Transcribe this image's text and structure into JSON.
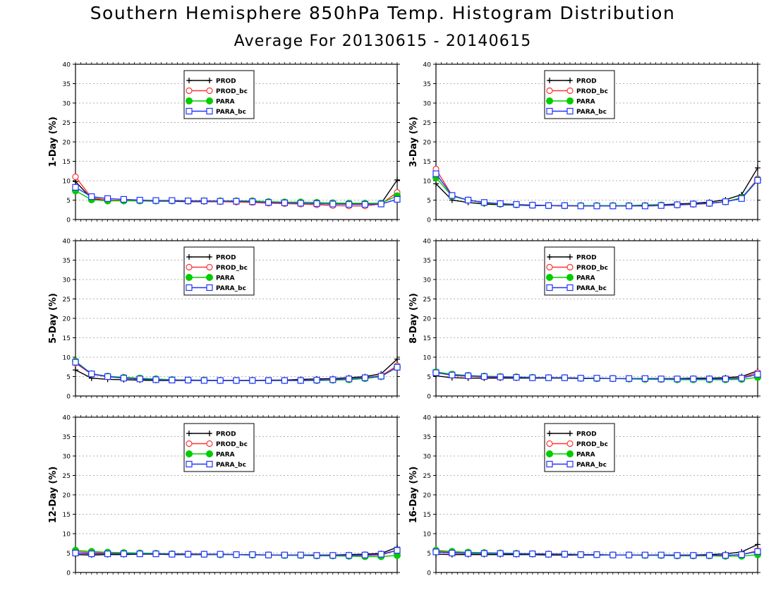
{
  "title": "Southern Hemisphere 850hPa Temp. Histogram Distribution",
  "subtitle": "Average For 20130615 - 20140615",
  "colors": {
    "PROD": "#000000",
    "PROD_bc": "#ff3333",
    "PARA": "#00cc00",
    "PARA_bc": "#2233ff",
    "grid": "#999999"
  },
  "chart_data": [
    {
      "type": "line",
      "ylabel": "1-Day (%)",
      "ylim": [
        0,
        40
      ],
      "yticks": [
        0,
        5,
        10,
        15,
        20,
        25,
        30,
        35,
        40
      ],
      "grid": true,
      "legend": "top-left inside",
      "x": [
        1,
        2,
        3,
        4,
        5,
        6,
        7,
        8,
        9,
        10,
        11,
        12,
        13,
        14,
        15,
        16,
        17,
        18,
        19,
        20,
        21
      ],
      "series": [
        {
          "name": "PROD",
          "marker": "plus",
          "values": [
            9.8,
            5.4,
            5.0,
            4.9,
            4.8,
            4.7,
            4.7,
            4.6,
            4.6,
            4.6,
            4.6,
            4.6,
            4.4,
            4.3,
            4.2,
            4.1,
            4.0,
            4.0,
            4.0,
            4.1,
            10.2
          ]
        },
        {
          "name": "PROD_bc",
          "marker": "open-circle",
          "values": [
            11.0,
            5.6,
            5.0,
            4.9,
            4.8,
            4.8,
            4.8,
            4.7,
            4.7,
            4.6,
            4.5,
            4.4,
            4.2,
            4.1,
            4.0,
            3.8,
            3.6,
            3.5,
            3.5,
            4.0,
            7.0
          ]
        },
        {
          "name": "PARA",
          "marker": "filled-circle",
          "values": [
            7.4,
            5.1,
            4.8,
            4.8,
            4.8,
            4.8,
            4.8,
            4.8,
            4.8,
            4.8,
            4.8,
            4.8,
            4.6,
            4.5,
            4.5,
            4.4,
            4.3,
            4.2,
            4.2,
            4.2,
            6.1
          ]
        },
        {
          "name": "PARA_bc",
          "marker": "open-square",
          "values": [
            8.3,
            5.9,
            5.4,
            5.2,
            5.0,
            4.9,
            4.9,
            4.8,
            4.8,
            4.7,
            4.7,
            4.6,
            4.4,
            4.3,
            4.2,
            4.1,
            4.0,
            3.9,
            3.9,
            4.0,
            5.2
          ]
        }
      ]
    },
    {
      "type": "line",
      "ylabel": "3-Day (%)",
      "ylim": [
        0,
        40
      ],
      "yticks": [
        0,
        5,
        10,
        15,
        20,
        25,
        30,
        35,
        40
      ],
      "grid": true,
      "legend": "top-left inside",
      "x": [
        1,
        2,
        3,
        4,
        5,
        6,
        7,
        8,
        9,
        10,
        11,
        12,
        13,
        14,
        15,
        16,
        17,
        18,
        19,
        20,
        21
      ],
      "series": [
        {
          "name": "PROD",
          "marker": "plus",
          "values": [
            9.2,
            5.0,
            4.4,
            4.0,
            3.8,
            3.7,
            3.6,
            3.6,
            3.5,
            3.5,
            3.6,
            3.6,
            3.6,
            3.7,
            3.8,
            4.0,
            4.2,
            4.5,
            5.1,
            6.4,
            13.3
          ]
        },
        {
          "name": "PROD_bc",
          "marker": "open-circle",
          "values": [
            13.0,
            6.2,
            5.0,
            4.4,
            4.0,
            3.8,
            3.7,
            3.6,
            3.5,
            3.5,
            3.5,
            3.5,
            3.5,
            3.5,
            3.6,
            3.7,
            3.9,
            4.1,
            4.6,
            5.5,
            10.5
          ]
        },
        {
          "name": "PARA",
          "marker": "filled-circle",
          "values": [
            10.8,
            6.0,
            5.0,
            4.3,
            4.0,
            3.8,
            3.7,
            3.6,
            3.6,
            3.6,
            3.6,
            3.6,
            3.6,
            3.6,
            3.7,
            3.8,
            4.0,
            4.2,
            4.6,
            5.6,
            10.2
          ]
        },
        {
          "name": "PARA_bc",
          "marker": "open-square",
          "values": [
            11.8,
            6.2,
            5.0,
            4.4,
            4.1,
            3.9,
            3.7,
            3.6,
            3.6,
            3.5,
            3.5,
            3.5,
            3.5,
            3.5,
            3.6,
            3.8,
            4.0,
            4.2,
            4.6,
            5.4,
            10.1
          ]
        }
      ]
    },
    {
      "type": "line",
      "ylabel": "5-Day (%)",
      "ylim": [
        0,
        40
      ],
      "yticks": [
        0,
        5,
        10,
        15,
        20,
        25,
        30,
        35,
        40
      ],
      "grid": true,
      "legend": "top-left inside",
      "x": [
        1,
        2,
        3,
        4,
        5,
        6,
        7,
        8,
        9,
        10,
        11,
        12,
        13,
        14,
        15,
        16,
        17,
        18,
        19,
        20,
        21
      ],
      "series": [
        {
          "name": "PROD",
          "marker": "plus",
          "values": [
            6.7,
            4.6,
            4.3,
            4.2,
            4.1,
            4.0,
            4.0,
            4.0,
            4.0,
            4.0,
            4.0,
            4.0,
            4.1,
            4.1,
            4.3,
            4.4,
            4.5,
            4.7,
            5.0,
            5.7,
            9.5
          ]
        },
        {
          "name": "PROD_bc",
          "marker": "open-circle",
          "values": [
            8.5,
            5.6,
            5.0,
            4.6,
            4.4,
            4.2,
            4.1,
            4.1,
            4.0,
            4.0,
            4.0,
            4.0,
            4.0,
            4.0,
            4.0,
            4.1,
            4.2,
            4.4,
            4.7,
            5.2,
            7.8
          ]
        },
        {
          "name": "PARA",
          "marker": "filled-circle",
          "values": [
            9.0,
            5.7,
            5.1,
            4.8,
            4.6,
            4.4,
            4.2,
            4.1,
            4.1,
            4.0,
            4.0,
            4.0,
            4.0,
            4.0,
            4.0,
            4.0,
            4.1,
            4.2,
            4.5,
            5.0,
            7.4
          ]
        },
        {
          "name": "PARA_bc",
          "marker": "open-square",
          "values": [
            8.7,
            5.7,
            5.0,
            4.6,
            4.4,
            4.2,
            4.1,
            4.1,
            4.0,
            4.0,
            4.0,
            4.0,
            4.0,
            4.0,
            4.0,
            4.1,
            4.2,
            4.4,
            4.7,
            5.1,
            7.4
          ]
        }
      ]
    },
    {
      "type": "line",
      "ylabel": "8-Day (%)",
      "ylim": [
        0,
        40
      ],
      "yticks": [
        0,
        5,
        10,
        15,
        20,
        25,
        30,
        35,
        40
      ],
      "grid": true,
      "legend": "top-left inside",
      "x": [
        1,
        2,
        3,
        4,
        5,
        6,
        7,
        8,
        9,
        10,
        11,
        12,
        13,
        14,
        15,
        16,
        17,
        18,
        19,
        20,
        21
      ],
      "series": [
        {
          "name": "PROD",
          "marker": "plus",
          "values": [
            5.2,
            4.7,
            4.6,
            4.6,
            4.6,
            4.6,
            4.6,
            4.6,
            4.6,
            4.5,
            4.5,
            4.5,
            4.5,
            4.5,
            4.5,
            4.5,
            4.6,
            4.6,
            4.7,
            5.0,
            6.5
          ]
        },
        {
          "name": "PROD_bc",
          "marker": "open-circle",
          "values": [
            6.2,
            5.3,
            5.1,
            4.9,
            4.8,
            4.8,
            4.7,
            4.7,
            4.7,
            4.6,
            4.6,
            4.5,
            4.5,
            4.4,
            4.4,
            4.3,
            4.3,
            4.3,
            4.4,
            4.7,
            6.0
          ]
        },
        {
          "name": "PARA",
          "marker": "filled-circle",
          "values": [
            6.2,
            5.6,
            5.3,
            5.1,
            5.0,
            4.9,
            4.8,
            4.7,
            4.7,
            4.6,
            4.5,
            4.5,
            4.4,
            4.3,
            4.3,
            4.2,
            4.2,
            4.2,
            4.2,
            4.3,
            4.8
          ]
        },
        {
          "name": "PARA_bc",
          "marker": "open-square",
          "values": [
            6.0,
            5.4,
            5.2,
            5.0,
            4.9,
            4.8,
            4.7,
            4.7,
            4.7,
            4.6,
            4.6,
            4.5,
            4.5,
            4.5,
            4.4,
            4.4,
            4.4,
            4.4,
            4.4,
            4.6,
            5.6
          ]
        }
      ]
    },
    {
      "type": "line",
      "ylabel": "12-Day (%)",
      "ylim": [
        0,
        40
      ],
      "yticks": [
        0,
        5,
        10,
        15,
        20,
        25,
        30,
        35,
        40
      ],
      "grid": true,
      "legend": "top-left inside",
      "x": [
        1,
        2,
        3,
        4,
        5,
        6,
        7,
        8,
        9,
        10,
        11,
        12,
        13,
        14,
        15,
        16,
        17,
        18,
        19,
        20,
        21
      ],
      "series": [
        {
          "name": "PROD",
          "marker": "plus",
          "values": [
            4.6,
            4.5,
            4.6,
            4.6,
            4.7,
            4.7,
            4.6,
            4.6,
            4.6,
            4.6,
            4.6,
            4.5,
            4.5,
            4.5,
            4.5,
            4.5,
            4.5,
            4.6,
            4.7,
            4.9,
            6.5
          ]
        },
        {
          "name": "PROD_bc",
          "marker": "open-circle",
          "values": [
            5.4,
            5.1,
            5.0,
            4.9,
            4.9,
            4.9,
            4.8,
            4.8,
            4.7,
            4.7,
            4.6,
            4.6,
            4.5,
            4.5,
            4.5,
            4.4,
            4.4,
            4.4,
            4.4,
            4.5,
            5.7
          ]
        },
        {
          "name": "PARA",
          "marker": "filled-circle",
          "values": [
            5.7,
            5.4,
            5.2,
            5.1,
            5.0,
            4.9,
            4.8,
            4.7,
            4.7,
            4.6,
            4.6,
            4.5,
            4.5,
            4.4,
            4.4,
            4.3,
            4.3,
            4.2,
            4.1,
            4.1,
            4.4
          ]
        },
        {
          "name": "PARA_bc",
          "marker": "open-square",
          "values": [
            5.0,
            4.8,
            4.8,
            4.8,
            4.8,
            4.8,
            4.7,
            4.7,
            4.7,
            4.7,
            4.6,
            4.6,
            4.5,
            4.5,
            4.5,
            4.4,
            4.4,
            4.4,
            4.5,
            4.7,
            5.7
          ]
        }
      ]
    },
    {
      "type": "line",
      "ylabel": "16-Day (%)",
      "ylim": [
        0,
        40
      ],
      "yticks": [
        0,
        5,
        10,
        15,
        20,
        25,
        30,
        35,
        40
      ],
      "grid": true,
      "legend": "top-left inside",
      "x": [
        1,
        2,
        3,
        4,
        5,
        6,
        7,
        8,
        9,
        10,
        11,
        12,
        13,
        14,
        15,
        16,
        17,
        18,
        19,
        20,
        21
      ],
      "series": [
        {
          "name": "PROD",
          "marker": "plus",
          "values": [
            4.7,
            4.6,
            4.6,
            4.6,
            4.6,
            4.6,
            4.6,
            4.5,
            4.5,
            4.5,
            4.5,
            4.5,
            4.5,
            4.5,
            4.5,
            4.5,
            4.5,
            4.6,
            4.8,
            5.3,
            7.2
          ]
        },
        {
          "name": "PROD_bc",
          "marker": "open-circle",
          "values": [
            5.5,
            5.2,
            5.0,
            5.0,
            4.9,
            4.9,
            4.8,
            4.8,
            4.7,
            4.6,
            4.6,
            4.5,
            4.5,
            4.5,
            4.4,
            4.4,
            4.4,
            4.4,
            4.4,
            4.6,
            5.6
          ]
        },
        {
          "name": "PARA",
          "marker": "filled-circle",
          "values": [
            5.7,
            5.4,
            5.2,
            5.1,
            5.0,
            4.9,
            4.8,
            4.7,
            4.7,
            4.6,
            4.6,
            4.5,
            4.5,
            4.4,
            4.4,
            4.3,
            4.3,
            4.3,
            4.2,
            4.2,
            4.6
          ]
        },
        {
          "name": "PARA_bc",
          "marker": "open-square",
          "values": [
            5.3,
            5.0,
            4.9,
            4.9,
            4.9,
            4.8,
            4.8,
            4.7,
            4.7,
            4.6,
            4.6,
            4.5,
            4.5,
            4.5,
            4.5,
            4.4,
            4.4,
            4.4,
            4.4,
            4.6,
            5.4
          ]
        }
      ]
    }
  ]
}
